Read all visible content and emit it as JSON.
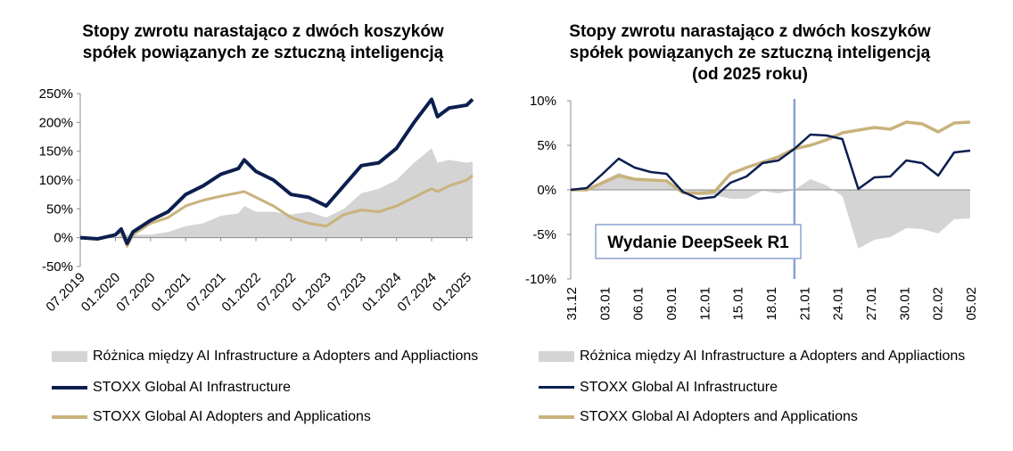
{
  "charts": [
    {
      "title_lines": [
        "Stopy zwrotu narastająco z dwóch koszyków",
        "spółek powiązanych ze sztuczną inteligencją"
      ],
      "legend": [
        {
          "label": "Różnica między AI Infrastructure a Adopters and Appliactions",
          "kind": "area"
        },
        {
          "label": "STOXX Global AI Infrastructure",
          "kind": "line-navy"
        },
        {
          "label": "STOXX Global AI Adopters and Applications",
          "kind": "line-gold"
        }
      ]
    },
    {
      "title_lines": [
        "Stopy zwrotu narastająco z dwóch koszyków",
        "spółek powiązanych ze sztuczną inteligencją",
        "(od 2025 roku)"
      ],
      "annotation": "Wydanie DeepSeek R1",
      "legend": [
        {
          "label": "Różnica między AI Infrastructure a Adopters and Appliactions",
          "kind": "area"
        },
        {
          "label": "STOXX Global AI Infrastructure",
          "kind": "line-navy"
        },
        {
          "label": "STOXX Global AI Adopters and Applications",
          "kind": "line-gold"
        }
      ]
    }
  ],
  "colors": {
    "infrastructure": "#0b1f4f",
    "adopters": "#c9b27c",
    "difference": "#d4d4d4",
    "deepseek_line": "#8aa2cf",
    "axis": "#8c8c8c"
  },
  "chart_data": [
    {
      "type": "line",
      "title": "Stopy zwrotu narastająco z dwóch koszyków spółek powiązanych ze sztuczną inteligencją",
      "ylim": [
        -50,
        250
      ],
      "y_ticks": [
        -50,
        0,
        50,
        100,
        150,
        200,
        250
      ],
      "y_tick_labels": [
        "-50%",
        "0%",
        "50%",
        "100%",
        "150%",
        "200%",
        "250%"
      ],
      "x_tick_labels": [
        "07.2019",
        "01.2020",
        "07.2020",
        "01.2021",
        "07.2021",
        "01.2022",
        "07.2022",
        "01.2023",
        "07.2023",
        "01.2024",
        "07.2024",
        "01.2025"
      ],
      "x": [
        "2019-07",
        "2019-10",
        "2020-01",
        "2020-02",
        "2020-03",
        "2020-04",
        "2020-07",
        "2020-10",
        "2021-01",
        "2021-04",
        "2021-07",
        "2021-10",
        "2021-11",
        "2022-01",
        "2022-04",
        "2022-07",
        "2022-10",
        "2023-01",
        "2023-04",
        "2023-07",
        "2023-10",
        "2024-01",
        "2024-04",
        "2024-07",
        "2024-08",
        "2024-10",
        "2025-01",
        "2025-02"
      ],
      "series": [
        {
          "name": "STOXX Global AI Infrastructure",
          "kind": "line",
          "values": [
            0,
            -2,
            5,
            15,
            -10,
            10,
            30,
            45,
            75,
            90,
            110,
            120,
            135,
            115,
            100,
            75,
            70,
            55,
            90,
            125,
            130,
            155,
            200,
            240,
            210,
            225,
            230,
            240
          ]
        },
        {
          "name": "STOXX Global AI Adopters and Applications",
          "kind": "line",
          "values": [
            0,
            -2,
            5,
            10,
            -15,
            5,
            25,
            35,
            55,
            65,
            72,
            78,
            80,
            70,
            55,
            35,
            25,
            20,
            40,
            48,
            45,
            55,
            70,
            85,
            80,
            90,
            100,
            108
          ]
        },
        {
          "name": "Różnica między AI Infrastructure a Adopters and Appliactions",
          "kind": "area",
          "values": [
            0,
            0,
            0,
            5,
            5,
            5,
            5,
            10,
            20,
            25,
            38,
            42,
            55,
            45,
            45,
            40,
            45,
            35,
            50,
            77,
            85,
            100,
            130,
            155,
            130,
            135,
            130,
            132
          ]
        }
      ],
      "legend_position": "bottom",
      "grid": false
    },
    {
      "type": "line",
      "title": "Stopy zwrotu narastająco z dwóch koszyków spółek powiązanych ze sztuczną inteligencją (od 2025 roku)",
      "ylim": [
        -10,
        10
      ],
      "y_ticks": [
        -10,
        -5,
        0,
        5,
        10
      ],
      "y_tick_labels": [
        "-10%",
        "-5%",
        "0%",
        "5%",
        "10%"
      ],
      "x_tick_labels": [
        "31.12",
        "03.01",
        "06.01",
        "09.01",
        "12.01",
        "15.01",
        "18.01",
        "21.01",
        "24.01",
        "27.01",
        "30.01",
        "02.02",
        "05.02"
      ],
      "x": [
        "31.12",
        "02.01",
        "03.01",
        "06.01",
        "07.01",
        "08.01",
        "09.01",
        "10.01",
        "13.01",
        "14.01",
        "15.01",
        "16.01",
        "17.01",
        "20.01",
        "21.01",
        "22.01",
        "23.01",
        "24.01",
        "27.01",
        "28.01",
        "29.01",
        "30.01",
        "31.01",
        "03.02",
        "04.02",
        "05.02"
      ],
      "series": [
        {
          "name": "STOXX Global AI Infrastructure",
          "kind": "line",
          "values": [
            0,
            0.2,
            1.8,
            3.5,
            2.5,
            2.0,
            1.8,
            -0.2,
            -1.0,
            -0.8,
            0.8,
            1.5,
            3.0,
            3.3,
            4.6,
            6.2,
            6.1,
            5.7,
            0.1,
            1.4,
            1.5,
            3.3,
            3.0,
            1.6,
            4.2,
            4.4
          ]
        },
        {
          "name": "STOXX Global AI Adopters and Applications",
          "kind": "line",
          "values": [
            0,
            0,
            0.8,
            1.6,
            1.2,
            1.1,
            1.0,
            -0.3,
            -0.4,
            -0.2,
            1.8,
            2.5,
            3.1,
            3.7,
            4.6,
            5.0,
            5.6,
            6.4,
            6.7,
            7.0,
            6.8,
            7.6,
            7.4,
            6.5,
            7.5,
            7.6
          ]
        },
        {
          "name": "Różnica między AI Infrastructure a Adopters and Appliactions",
          "kind": "area",
          "values": [
            0,
            0.2,
            1.0,
            1.9,
            1.3,
            0.9,
            0.8,
            0.1,
            -0.6,
            -0.6,
            -1.0,
            -1.0,
            -0.1,
            -0.4,
            0,
            1.2,
            0.5,
            -0.7,
            -6.6,
            -5.6,
            -5.3,
            -4.3,
            -4.4,
            -4.9,
            -3.3,
            -3.2
          ]
        }
      ],
      "annotation": {
        "text": "Wydanie DeepSeek R1",
        "x": "21.01"
      },
      "legend_position": "bottom",
      "grid": false
    }
  ]
}
